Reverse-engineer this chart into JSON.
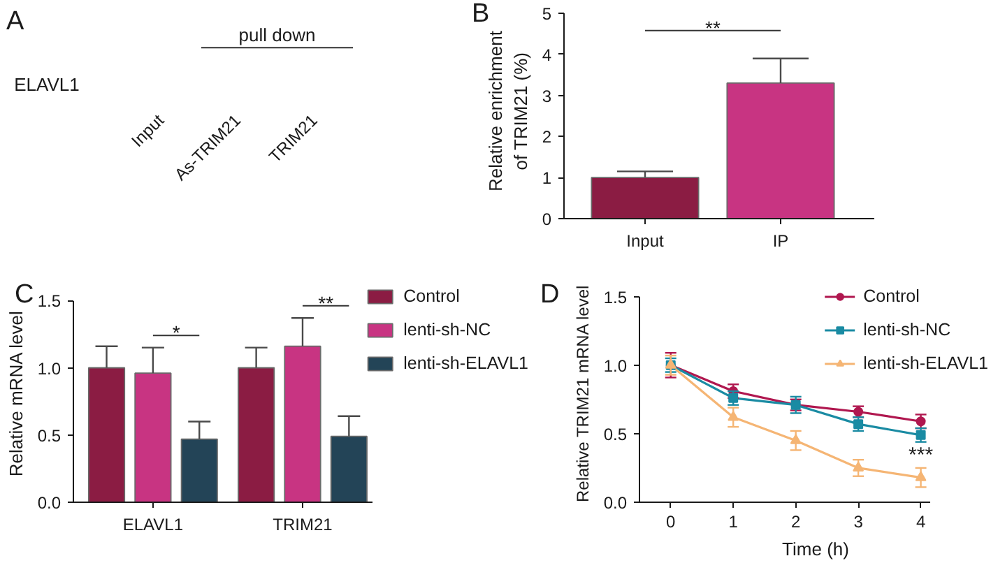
{
  "chart_data": [
    {
      "type": "other",
      "title": "A",
      "categories": [
        "Input",
        "As-TRIM21",
        "TRIM21"
      ],
      "annotations": [
        "ELAVL1",
        "pull down"
      ]
    },
    {
      "type": "bar",
      "title": "B",
      "categories": [
        "Input",
        "IP"
      ],
      "values": [
        1.0,
        3.3
      ],
      "colors": [
        "#8b1c43",
        "#c83482"
      ],
      "errors": [
        [
          1.0,
          1.15
        ],
        [
          3.3,
          3.9
        ]
      ],
      "ylabel": "Relative enrichment of TRIM21 (%)",
      "ylim": [
        0,
        5
      ],
      "yticks": [
        0,
        1,
        2,
        3,
        4,
        5
      ],
      "annotations": [
        "**"
      ]
    },
    {
      "type": "bar",
      "title": "C",
      "categories": [
        "ELAVL1",
        "TRIM21"
      ],
      "series": [
        {
          "name": "Control",
          "color": "#8b1c43",
          "values": [
            1.0,
            1.0
          ],
          "errors": [
            [
              1.0,
              1.16
            ],
            [
              1.0,
              1.15
            ]
          ]
        },
        {
          "name": "lenti-sh-NC",
          "color": "#c83482",
          "values": [
            0.96,
            1.16
          ],
          "errors": [
            [
              0.96,
              1.15
            ],
            [
              1.16,
              1.37
            ]
          ]
        },
        {
          "name": "lenti-sh-ELAVL1",
          "color": "#234457",
          "values": [
            0.47,
            0.49
          ],
          "errors": [
            [
              0.47,
              0.6
            ],
            [
              0.49,
              0.64
            ]
          ]
        }
      ],
      "ylabel": "Relative mRNA level",
      "ylim": [
        0,
        1.5
      ],
      "yticks": [
        {
          "value": 0,
          "label": "0.0"
        },
        {
          "value": 0.5,
          "label": "0.5"
        },
        {
          "value": 1,
          "label": "1.0"
        },
        {
          "value": 1.5,
          "label": "1.5"
        }
      ],
      "legend": "right",
      "annotations": [
        "*",
        "**"
      ]
    },
    {
      "type": "line",
      "title": "D",
      "x": [
        0,
        1,
        2,
        3,
        4
      ],
      "series": [
        {
          "name": "Control",
          "color": "#b0174f",
          "marker": "circle",
          "values": [
            1.0,
            0.81,
            0.71,
            0.66,
            0.59
          ],
          "errors": [
            0.09,
            0.05,
            0.04,
            0.04,
            0.05
          ]
        },
        {
          "name": "lenti-sh-NC",
          "color": "#1a8ba3",
          "marker": "square",
          "values": [
            1.0,
            0.76,
            0.71,
            0.57,
            0.49
          ],
          "errors": [
            0.05,
            0.05,
            0.06,
            0.05,
            0.05
          ]
        },
        {
          "name": "lenti-sh-ELAVL1",
          "color": "#f5b574",
          "marker": "triangle",
          "values": [
            1.0,
            0.62,
            0.45,
            0.25,
            0.18
          ],
          "errors": [
            0.07,
            0.07,
            0.07,
            0.06,
            0.07
          ]
        }
      ],
      "xlabel": "Time (h)",
      "ylabel": "Relative TRIM21 mRNA level",
      "xlim": [
        -0.5,
        4.15
      ],
      "xticks": [
        0,
        1,
        2,
        3,
        4
      ],
      "ylim": [
        0,
        1.5
      ],
      "yticks": [
        {
          "value": 0,
          "label": "0.0"
        },
        {
          "value": 0.5,
          "label": "0.5"
        },
        {
          "value": 1,
          "label": "1.0"
        },
        {
          "value": 1.5,
          "label": "1.5"
        }
      ],
      "legend": "top right",
      "line_style": "solid",
      "annotations": [
        "***"
      ]
    }
  ]
}
